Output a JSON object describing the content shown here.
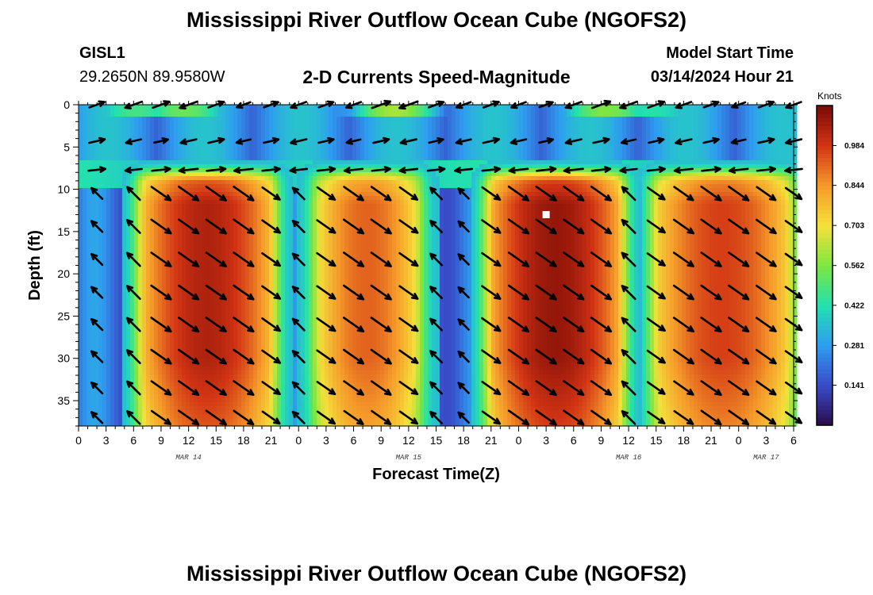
{
  "header": {
    "title": "Mississippi River Outflow Ocean Cube (NGOFS2)",
    "station": "GISL1",
    "coordinates": "29.2650N  89.9580W",
    "chart_title": "2-D Currents Speed-Magnitude",
    "start_label": "Model Start Time",
    "start_value": "03/14/2024 Hour 21"
  },
  "footer": {
    "title": "Mississippi River Outflow Ocean Cube (NGOFS2)"
  },
  "colors": {
    "arrow": "#000000",
    "colormap": [
      "#2a0a4a",
      "#3a4bc8",
      "#2e9df0",
      "#22e0b0",
      "#7ee640",
      "#f5e03a",
      "#f59a2a",
      "#d23414",
      "#7a0a06"
    ]
  },
  "chart_data": {
    "type": "heatmap",
    "title": "2-D Currents Speed-Magnitude",
    "xlabel": "Forecast Time(Z)",
    "ylabel": "Depth (ft)",
    "xlim": [
      0,
      78
    ],
    "ylim": [
      0,
      38
    ],
    "y_inverted": true,
    "x_tick_values": [
      0,
      3,
      6,
      9,
      12,
      15,
      18,
      21,
      24,
      27,
      30,
      33,
      36,
      39,
      42,
      45,
      48,
      51,
      54,
      57,
      60,
      63,
      66,
      69,
      72,
      75,
      78
    ],
    "x_tick_labels": [
      "0",
      "3",
      "6",
      "9",
      "12",
      "15",
      "18",
      "21",
      "0",
      "3",
      "6",
      "9",
      "12",
      "15",
      "18",
      "21",
      "0",
      "3",
      "6",
      "9",
      "12",
      "15",
      "18",
      "21",
      "0",
      "3",
      "6"
    ],
    "y_tick_values": [
      0,
      5,
      10,
      15,
      20,
      25,
      30,
      35
    ],
    "y_tick_labels": [
      "0",
      "5",
      "10",
      "15",
      "20",
      "25",
      "30",
      "35"
    ],
    "date_labels": [
      {
        "label": "MAR 14",
        "hour": 12
      },
      {
        "label": "MAR 15",
        "hour": 36
      },
      {
        "label": "MAR 16",
        "hour": 60
      },
      {
        "label": "MAR 17",
        "hour": 75
      }
    ],
    "colorbar": {
      "unit": "Knots",
      "min": 0.0,
      "max": 1.125,
      "tick_values": [
        0.141,
        0.281,
        0.422,
        0.562,
        0.703,
        0.844,
        0.984
      ],
      "tick_labels": [
        "0.141",
        "0.281",
        "0.422",
        "0.562",
        "0.703",
        "0.844",
        "0.984"
      ]
    },
    "high_speed_blocks": [
      {
        "start_hour": 7.5,
        "end_hour": 20.5,
        "peak_knots": 1.04
      },
      {
        "start_hour": 26.5,
        "end_hour": 36.5,
        "peak_knots": 0.92
      },
      {
        "start_hour": 45.5,
        "end_hour": 58.5,
        "peak_knots": 1.08
      },
      {
        "start_hour": 63.5,
        "end_hour": 77.0,
        "peak_knots": 0.97
      }
    ],
    "vector_columns_hours": [
      2,
      6,
      9,
      12,
      15,
      18,
      21,
      24,
      27,
      30,
      33,
      36,
      39,
      42,
      45,
      48,
      51,
      54,
      57,
      60,
      63,
      66,
      69,
      72,
      75,
      78
    ],
    "vector_depths_ft": [
      0,
      4.3,
      7.7,
      10.5,
      14.4,
      18.3,
      22.2,
      26,
      29.8,
      33.5,
      37
    ],
    "max_marker": {
      "hour": 51,
      "depth_ft": 13
    }
  }
}
